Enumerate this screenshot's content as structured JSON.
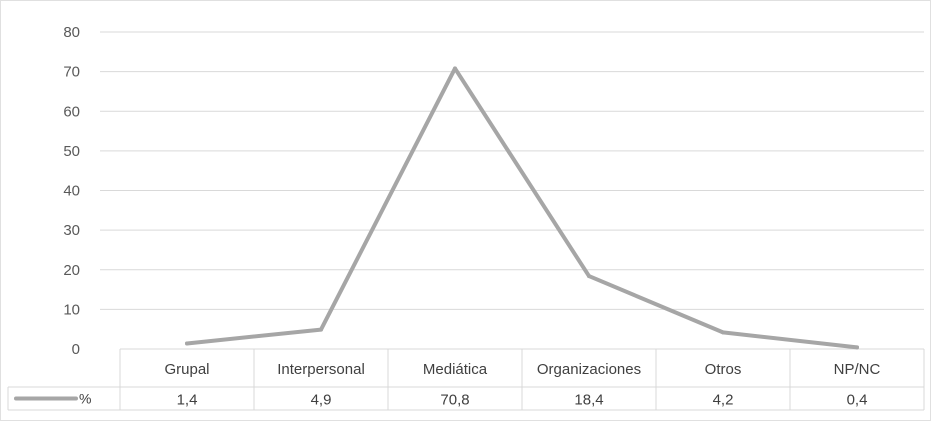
{
  "chart_data": {
    "type": "line",
    "categories": [
      "Grupal",
      "Interpersonal",
      "Mediática",
      "Organizaciones",
      "Otros",
      "NP/NC"
    ],
    "series": [
      {
        "name": "%",
        "values": [
          1.4,
          4.9,
          70.8,
          18.4,
          4.2,
          0.4
        ]
      }
    ],
    "value_labels": [
      "1,4",
      "4,9",
      "70,8",
      "18,4",
      "4,2",
      "0,4"
    ],
    "y_ticks": [
      "0",
      "10",
      "20",
      "30",
      "40",
      "50",
      "60",
      "70",
      "80"
    ],
    "ylim": [
      0,
      80
    ],
    "grid": true,
    "legend": "data-table",
    "colors": {
      "line": "#a6a6a6",
      "grid": "#d9d9d9",
      "text": "#404040"
    }
  }
}
